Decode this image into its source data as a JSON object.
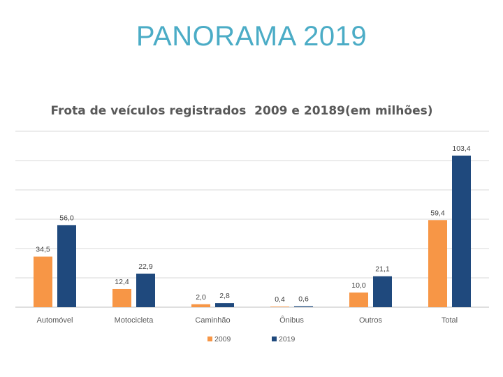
{
  "slide": {
    "title": "PANORAMA 2019"
  },
  "chart_data": {
    "type": "bar",
    "title": "Frota de veículos registrados  2009 e 20189(em milhões)",
    "categories": [
      "Automóvel",
      "Motocicleta",
      "Caminhão",
      "Ônibus",
      "Outros",
      "Total"
    ],
    "series": [
      {
        "name": "2009",
        "values": [
          34.5,
          12.4,
          2.0,
          0.4,
          10.0,
          59.4
        ],
        "labels": [
          "34,5",
          "12,4",
          "2,0",
          "0,4",
          "10,0",
          "59,4"
        ],
        "color": "#f79646"
      },
      {
        "name": "2019",
        "values": [
          56.0,
          22.9,
          2.8,
          0.6,
          21.1,
          103.4
        ],
        "labels": [
          "56,0",
          "22,9",
          "2,8",
          "0,6",
          "21,1",
          "103,4"
        ],
        "color": "#1f497d"
      }
    ],
    "ylim": [
      0,
      120
    ],
    "grid": true,
    "legend": "bottom",
    "xlabel": "",
    "ylabel": ""
  }
}
